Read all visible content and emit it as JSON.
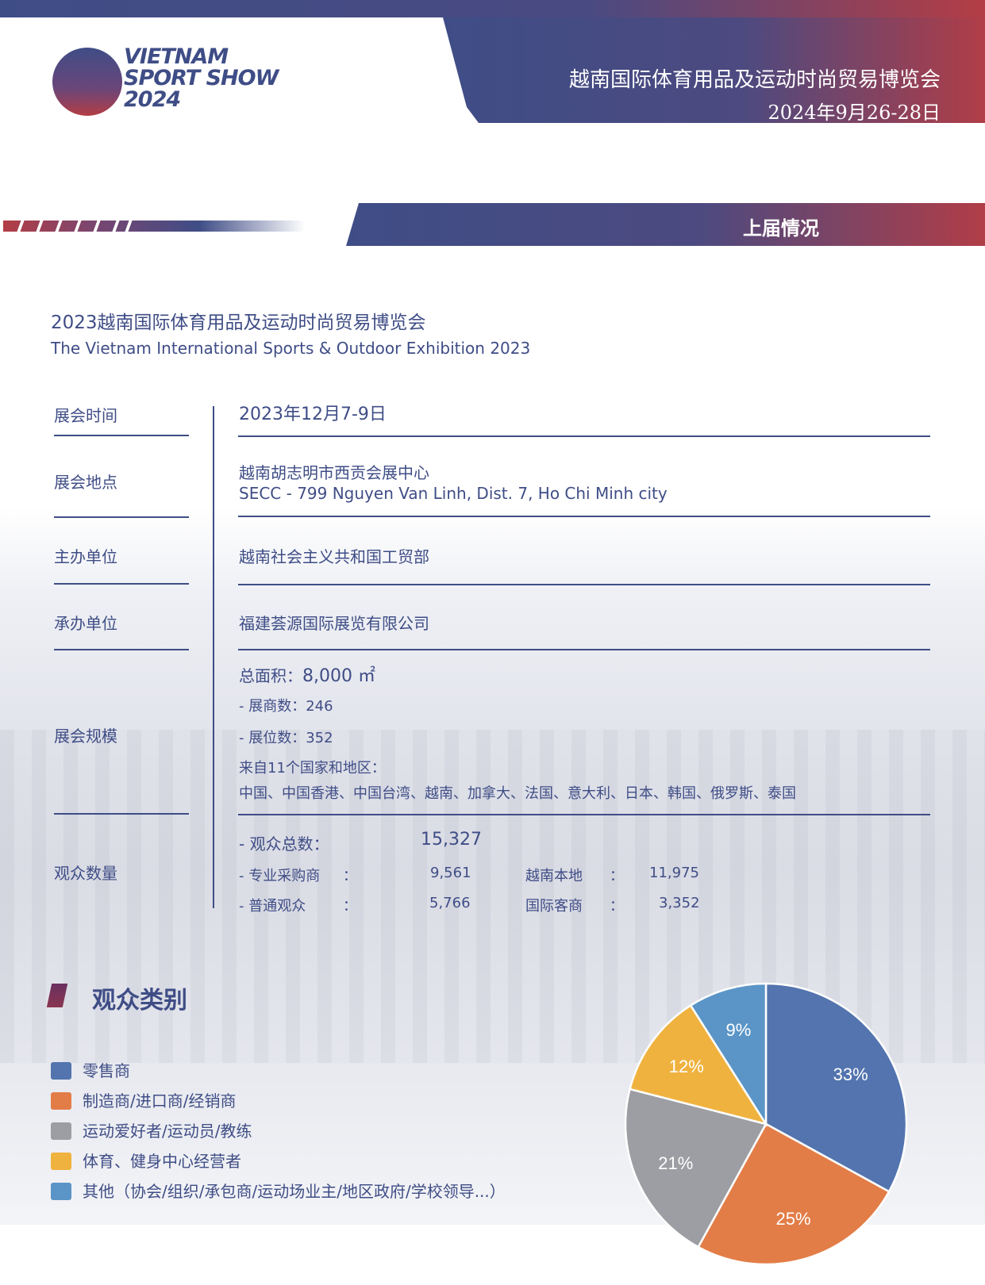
{
  "header": {
    "logo_text": [
      "VIETNAM",
      "SPORT SHOW",
      "2024"
    ],
    "title": "越南国际体育用品及运动时尚贸易博览会",
    "date": "2024年9月26-28日"
  },
  "section": {
    "title": "上届情况"
  },
  "previous": {
    "title_cn": "2023越南国际体育用品及运动时尚贸易博览会",
    "title_en": "The Vietnam International Sports & Outdoor Exhibition 2023"
  },
  "rows": {
    "time": {
      "label": "展会时间",
      "value": "2023年12月7-9日"
    },
    "venue": {
      "label": "展会地点",
      "value_cn": "越南胡志明市西贡会展中心",
      "value_en": "SECC - 799 Nguyen Van Linh, Dist. 7, Ho Chi Minh city"
    },
    "host": {
      "label": "主办单位",
      "value": "越南社会主义共和国工贸部"
    },
    "organizer": {
      "label": "承办单位",
      "value": "福建荟源国际展览有限公司"
    },
    "scale": {
      "label": "展会规模",
      "area_label": "总面积：",
      "area_value": "8,000 ㎡",
      "exhibitors": "- 展商数：246",
      "booths": "- 展位数：352",
      "countries_intro": "来自11个国家和地区：",
      "countries": "中国、中国香港、中国台湾、越南、加拿大、法国、意大利、日本、韩国、俄罗斯、泰国"
    },
    "visitors": {
      "label": "观众数量",
      "total_label": "- 观众总数：",
      "total_value": "15,327",
      "buyers_label": "- 专业采购商",
      "buyers_value": "9,561",
      "general_label": "- 普通观众",
      "general_value": "5,766",
      "local_label": "越南本地",
      "local_value": "11,975",
      "intl_label": "国际客商",
      "intl_value": "3,352",
      "colon": "："
    }
  },
  "categories": {
    "title": "观众类别",
    "legend": [
      {
        "label": "零售商",
        "color": "#5374ae"
      },
      {
        "label": "制造商/进口商/经销商",
        "color": "#e37d47"
      },
      {
        "label": "运动爱好者/运动员/教练",
        "color": "#9d9ea3"
      },
      {
        "label": "体育、健身中心经营者",
        "color": "#f0b23f"
      },
      {
        "label": "其他（协会/组织/承包商/运动场业主/地区政府/学校领导...）",
        "color": "#5b95c7"
      }
    ]
  },
  "chart_data": {
    "type": "pie",
    "categories": [
      "零售商",
      "制造商/进口商/经销商",
      "运动爱好者/运动员/教练",
      "体育、健身中心经营者",
      "其他（协会/组织/承包商/运动场业主/地区政府/学校领导...）"
    ],
    "values": [
      33,
      25,
      21,
      12,
      9
    ],
    "data_labels": [
      "33%",
      "25%",
      "21%",
      "12%",
      "9%"
    ],
    "colors": [
      "#5374ae",
      "#e37d47",
      "#9d9ea3",
      "#f0b23f",
      "#5b95c7"
    ],
    "start": "12 o'clock, clockwise",
    "legend_placement": "left"
  }
}
